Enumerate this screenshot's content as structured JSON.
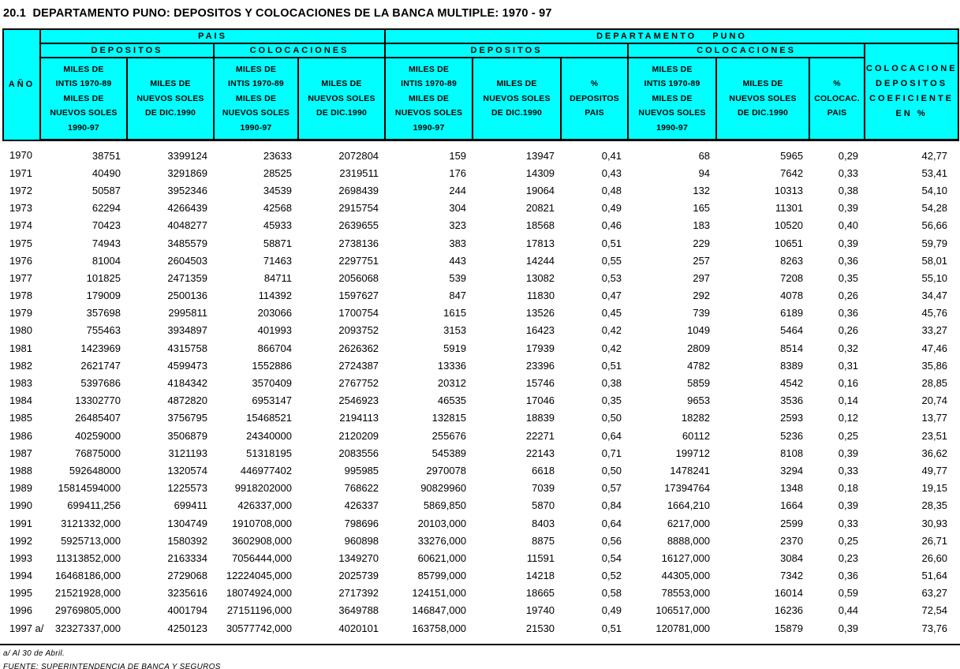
{
  "title": "20.1  DEPARTAMENTO PUNO: DEPOSITOS Y COLOCACIONES DE LA BANCA MULTIPLE: 1970 - 97",
  "table": {
    "header": {
      "year": "AÑO",
      "pais": "PAIS",
      "puno": "DEPARTAMENTO PUNO",
      "pais_depositos": "DEPOSITOS",
      "pais_colocaciones": "COLOCACIONES",
      "puno_depositos": "DEPOSITOS",
      "puno_colocaciones": "COLOCACIONES",
      "coef": "COLOCACIONES/\nDEPOSITOS\nCOEFICIENTE\nEN %",
      "units": [
        "MILES DE\nINTIS 1970-89\nMILES DE\nNUEVOS SOLES\n1990-97",
        "MILES DE\nNUEVOS SOLES\nDE DIC.1990",
        "MILES DE\nINTIS 1970-89\nMILES DE\nNUEVOS SOLES\n1990-97",
        "MILES DE\nNUEVOS SOLES\nDE DIC.1990",
        "MILES DE\nINTIS 1970-89\nMILES DE\nNUEVOS SOLES\n1990-97",
        "MILES DE\nNUEVOS SOLES\nDE DIC.1990",
        "%\nDEPOSITOS\nPAIS",
        "MILES DE\nINTIS 1970-89\nMILES DE\nNUEVOS SOLES\n1990-97",
        "MILES DE\nNUEVOS SOLES\nDE DIC.1990",
        "%\nCOLOCAC.\nPAIS"
      ]
    },
    "rows": [
      [
        "1970",
        "38751",
        "3399124",
        "23633",
        "2072804",
        "159",
        "13947",
        "0,41",
        "68",
        "5965",
        "0,29",
        "42,77"
      ],
      [
        "1971",
        "40490",
        "3291869",
        "28525",
        "2319511",
        "176",
        "14309",
        "0,43",
        "94",
        "7642",
        "0,33",
        "53,41"
      ],
      [
        "1972",
        "50587",
        "3952346",
        "34539",
        "2698439",
        "244",
        "19064",
        "0,48",
        "132",
        "10313",
        "0,38",
        "54,10"
      ],
      [
        "1973",
        "62294",
        "4266439",
        "42568",
        "2915754",
        "304",
        "20821",
        "0,49",
        "165",
        "11301",
        "0,39",
        "54,28"
      ],
      [
        "1974",
        "70423",
        "4048277",
        "45933",
        "2639655",
        "323",
        "18568",
        "0,46",
        "183",
        "10520",
        "0,40",
        "56,66"
      ],
      [
        "1975",
        "74943",
        "3485579",
        "58871",
        "2738136",
        "383",
        "17813",
        "0,51",
        "229",
        "10651",
        "0,39",
        "59,79"
      ],
      [
        "1976",
        "81004",
        "2604503",
        "71463",
        "2297751",
        "443",
        "14244",
        "0,55",
        "257",
        "8263",
        "0,36",
        "58,01"
      ],
      [
        "1977",
        "101825",
        "2471359",
        "84711",
        "2056068",
        "539",
        "13082",
        "0,53",
        "297",
        "7208",
        "0,35",
        "55,10"
      ],
      [
        "1978",
        "179009",
        "2500136",
        "114392",
        "1597627",
        "847",
        "11830",
        "0,47",
        "292",
        "4078",
        "0,26",
        "34,47"
      ],
      [
        "1979",
        "357698",
        "2995811",
        "203066",
        "1700754",
        "1615",
        "13526",
        "0,45",
        "739",
        "6189",
        "0,36",
        "45,76"
      ],
      [
        "1980",
        "755463",
        "3934897",
        "401993",
        "2093752",
        "3153",
        "16423",
        "0,42",
        "1049",
        "5464",
        "0,26",
        "33,27"
      ],
      [
        "1981",
        "1423969",
        "4315758",
        "866704",
        "2626362",
        "5919",
        "17939",
        "0,42",
        "2809",
        "8514",
        "0,32",
        "47,46"
      ],
      [
        "1982",
        "2621747",
        "4599473",
        "1552886",
        "2724387",
        "13336",
        "23396",
        "0,51",
        "4782",
        "8389",
        "0,31",
        "35,86"
      ],
      [
        "1983",
        "5397686",
        "4184342",
        "3570409",
        "2767752",
        "20312",
        "15746",
        "0,38",
        "5859",
        "4542",
        "0,16",
        "28,85"
      ],
      [
        "1984",
        "13302770",
        "4872820",
        "6953147",
        "2546923",
        "46535",
        "17046",
        "0,35",
        "9653",
        "3536",
        "0,14",
        "20,74"
      ],
      [
        "1985",
        "26485407",
        "3756795",
        "15468521",
        "2194113",
        "132815",
        "18839",
        "0,50",
        "18282",
        "2593",
        "0,12",
        "13,77"
      ],
      [
        "1986",
        "40259000",
        "3506879",
        "24340000",
        "2120209",
        "255676",
        "22271",
        "0,64",
        "60112",
        "5236",
        "0,25",
        "23,51"
      ],
      [
        "1987",
        "76875000",
        "3121193",
        "51318195",
        "2083556",
        "545389",
        "22143",
        "0,71",
        "199712",
        "8108",
        "0,39",
        "36,62"
      ],
      [
        "1988",
        "592648000",
        "1320574",
        "446977402",
        "995985",
        "2970078",
        "6618",
        "0,50",
        "1478241",
        "3294",
        "0,33",
        "49,77"
      ],
      [
        "1989",
        "15814594000",
        "1225573",
        "9918202000",
        "768622",
        "90829960",
        "7039",
        "0,57",
        "17394764",
        "1348",
        "0,18",
        "19,15"
      ],
      [
        "1990",
        "699411,256",
        "699411",
        "426337,000",
        "426337",
        "5869,850",
        "5870",
        "0,84",
        "1664,210",
        "1664",
        "0,39",
        "28,35"
      ],
      [
        "1991",
        "3121332,000",
        "1304749",
        "1910708,000",
        "798696",
        "20103,000",
        "8403",
        "0,64",
        "6217,000",
        "2599",
        "0,33",
        "30,93"
      ],
      [
        "1992",
        "5925713,000",
        "1580392",
        "3602908,000",
        "960898",
        "33276,000",
        "8875",
        "0,56",
        "8888,000",
        "2370",
        "0,25",
        "26,71"
      ],
      [
        "1993",
        "11313852,000",
        "2163334",
        "7056444,000",
        "1349270",
        "60621,000",
        "11591",
        "0,54",
        "16127,000",
        "3084",
        "0,23",
        "26,60"
      ],
      [
        "1994",
        "16468186,000",
        "2729068",
        "12224045,000",
        "2025739",
        "85799,000",
        "14218",
        "0,52",
        "44305,000",
        "7342",
        "0,36",
        "51,64"
      ],
      [
        "1995",
        "21521928,000",
        "3235616",
        "18074924,000",
        "2717392",
        "124151,000",
        "18665",
        "0,58",
        "78553,000",
        "16014",
        "0,59",
        "63,27"
      ],
      [
        "1996",
        "29769805,000",
        "4001794",
        "27151196,000",
        "3649788",
        "146847,000",
        "19740",
        "0,49",
        "106517,000",
        "16236",
        "0,44",
        "72,54"
      ],
      [
        "1997 a/",
        "32327337,000",
        "4250123",
        "30577742,000",
        "4020101",
        "163758,000",
        "21530",
        "0,51",
        "120781,000",
        "15879",
        "0,39",
        "73,76"
      ]
    ]
  },
  "footnotes": {
    "note": "a/ Al 30 de Abril.",
    "source": "FUENTE: SUPERINTENDENCIA DE BANCA Y SEGUROS"
  },
  "colors": {
    "header_background": "#00ffff",
    "border": "#000000",
    "text": "#000000",
    "page_background": "#ffffff"
  }
}
